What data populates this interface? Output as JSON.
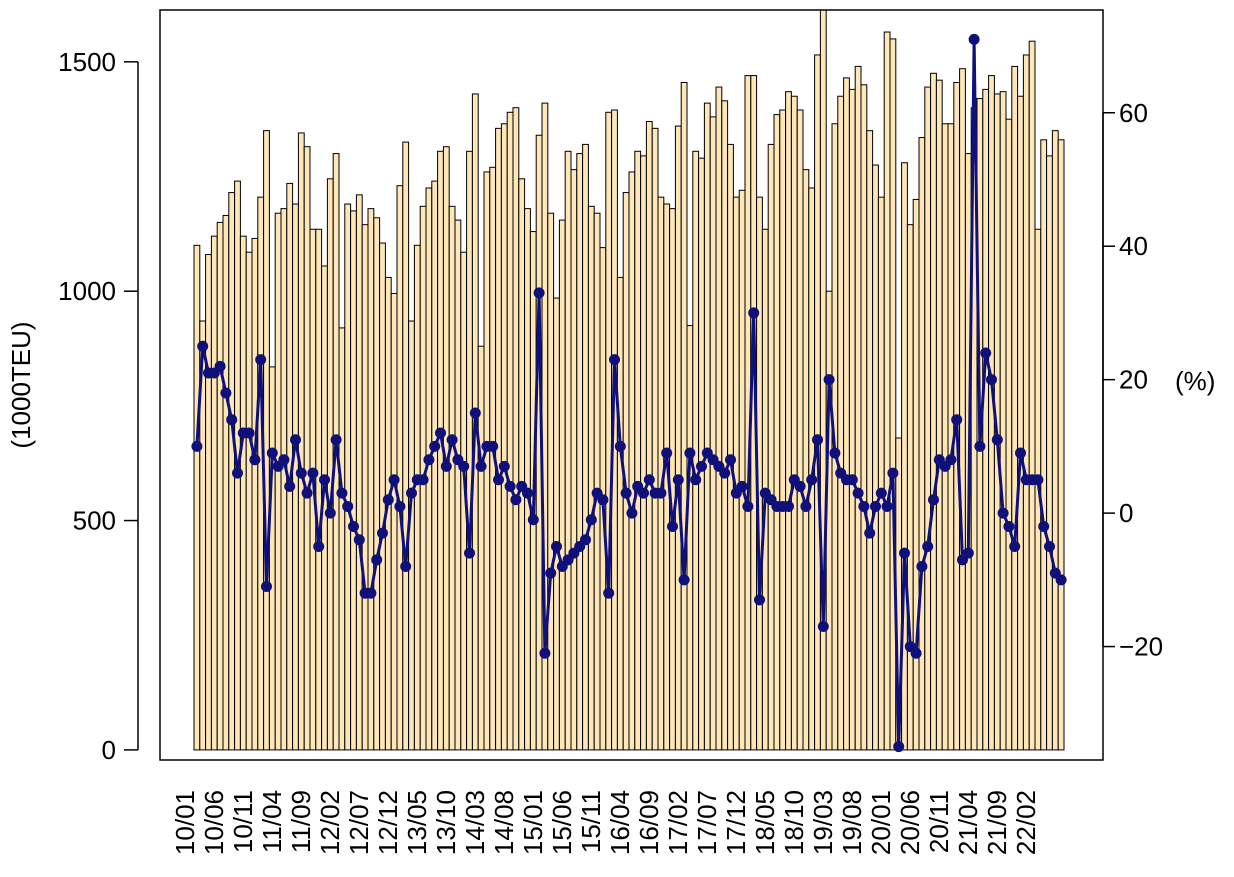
{
  "chart_data": {
    "type": "bar",
    "y_label": "(1000TEU)",
    "y2_label": "(%)",
    "categories": [
      "10/01",
      null,
      null,
      null,
      null,
      "10/06",
      null,
      null,
      null,
      null,
      "10/11",
      null,
      null,
      null,
      null,
      "11/04",
      null,
      null,
      null,
      null,
      "11/09",
      null,
      null,
      null,
      null,
      "12/02",
      null,
      null,
      null,
      null,
      "12/07",
      null,
      null,
      null,
      null,
      "12/12",
      null,
      null,
      null,
      null,
      "13/05",
      null,
      null,
      null,
      null,
      "13/10",
      null,
      null,
      null,
      null,
      "14/03",
      null,
      null,
      null,
      null,
      "14/08",
      null,
      null,
      null,
      null,
      "15/01",
      null,
      null,
      null,
      null,
      "15/06",
      null,
      null,
      null,
      null,
      "15/11",
      null,
      null,
      null,
      null,
      "16/04",
      null,
      null,
      null,
      null,
      "16/09",
      null,
      null,
      null,
      null,
      "17/02",
      null,
      null,
      null,
      null,
      "17/07",
      null,
      null,
      null,
      null,
      "17/12",
      null,
      null,
      null,
      null,
      "18/05",
      null,
      null,
      null,
      null,
      "18/10",
      null,
      null,
      null,
      null,
      "19/03",
      null,
      null,
      null,
      null,
      "19/08",
      null,
      null,
      null,
      null,
      "20/01",
      null,
      null,
      null,
      null,
      "20/06",
      null,
      null,
      null,
      null,
      "20/11",
      null,
      null,
      null,
      null,
      "21/04",
      null,
      null,
      null,
      null,
      "21/09",
      null,
      null,
      null,
      null,
      "22/02",
      null,
      null,
      null,
      null
    ],
    "series": [
      {
        "type": "bar",
        "color": "#fde6b8",
        "values": [
          1100,
          935,
          1080,
          1120,
          1150,
          1165,
          1215,
          1240,
          1120,
          1085,
          1115,
          1205,
          1350,
          835,
          1170,
          1180,
          1235,
          1190,
          1345,
          1315,
          1135,
          1135,
          1055,
          1245,
          1300,
          920,
          1190,
          1175,
          1210,
          1145,
          1180,
          1160,
          1105,
          1030,
          995,
          1230,
          1325,
          935,
          1100,
          1185,
          1225,
          1240,
          1305,
          1315,
          1185,
          1155,
          1085,
          1305,
          1430,
          880,
          1260,
          1270,
          1355,
          1365,
          1390,
          1400,
          1245,
          1180,
          1130,
          1340,
          1410,
          1170,
          985,
          1155,
          1305,
          1265,
          1300,
          1320,
          1185,
          1170,
          1095,
          1390,
          1395,
          1030,
          1215,
          1260,
          1305,
          1295,
          1370,
          1355,
          1205,
          1190,
          1180,
          1360,
          1455,
          925,
          1305,
          1290,
          1410,
          1380,
          1445,
          1415,
          1320,
          1205,
          1220,
          1470,
          1470,
          1205,
          1135,
          1320,
          1385,
          1395,
          1435,
          1425,
          1395,
          1265,
          1225,
          1515,
          1620,
          1000,
          1365,
          1425,
          1465,
          1440,
          1490,
          1450,
          1350,
          1275,
          1205,
          1565,
          1550,
          680,
          1280,
          1145,
          1200,
          1335,
          1445,
          1475,
          1460,
          1365,
          1365,
          1455,
          1485,
          1300,
          1400,
          1420,
          1440,
          1470,
          1430,
          1435,
          1375,
          1490,
          1425,
          1515,
          1545,
          1135,
          1330,
          1295,
          1350,
          1330
        ]
      },
      {
        "type": "line",
        "axis": "y2",
        "color": "#10107a",
        "values": [
          10,
          25,
          21,
          21,
          22,
          18,
          14,
          6,
          12,
          12,
          8,
          23,
          -11,
          9,
          7,
          8,
          4,
          11,
          6,
          3,
          6,
          -5,
          5,
          0,
          11,
          3,
          1,
          -2,
          -4,
          -12,
          -12,
          -7,
          -3,
          2,
          5,
          1,
          -8,
          3,
          5,
          5,
          8,
          10,
          12,
          7,
          11,
          8,
          7,
          -6,
          15,
          7,
          10,
          10,
          5,
          7,
          4,
          2,
          4,
          3,
          -1,
          33,
          -21,
          -9,
          -5,
          -8,
          -7,
          -6,
          -5,
          -4,
          -1,
          3,
          2,
          -12,
          23,
          10,
          3,
          0,
          4,
          3,
          5,
          3,
          3,
          9,
          -2,
          5,
          -10,
          9,
          5,
          7,
          9,
          8,
          7,
          6,
          8,
          3,
          4,
          1,
          30,
          -13,
          3,
          2,
          1,
          1,
          1,
          5,
          4,
          1,
          5,
          11,
          -17,
          20,
          9,
          6,
          5,
          5,
          3,
          1,
          -3,
          1,
          3,
          1,
          6,
          -35,
          -6,
          -20,
          -21,
          -8,
          -5,
          2,
          8,
          7,
          8,
          14,
          -7,
          -6,
          71,
          10,
          24,
          20,
          11,
          0,
          -2,
          -5,
          9,
          5,
          5,
          5,
          -2,
          -5,
          -9,
          -10
        ]
      }
    ],
    "ylim": [
      -22,
      1613
    ],
    "yticks": [
      0,
      500,
      1000,
      1500
    ],
    "y2lim": [
      -37,
      75.4
    ],
    "y2ticks": [
      {
        "value": -20,
        "label": "−20"
      },
      0,
      20,
      40,
      60
    ]
  }
}
